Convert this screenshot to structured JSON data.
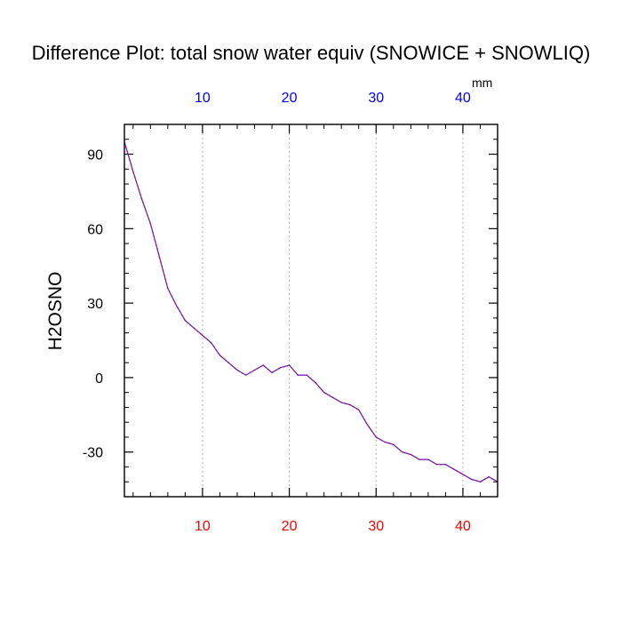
{
  "chart_data": {
    "type": "line",
    "title": "Difference Plot: total snow water equiv (SNOWICE + SNOWLIQ)",
    "ylabel": "H2OSNO",
    "units": "mm",
    "xlim": [
      1,
      44
    ],
    "ylim": [
      -48,
      102
    ],
    "x_ticks": [
      10,
      20,
      30,
      40
    ],
    "y_ticks": [
      -30,
      0,
      30,
      60,
      90
    ],
    "top_tick_color": "#0000ff",
    "bottom_tick_color": "#ff0000",
    "grid": "vertical dotted at major x ticks",
    "series": [
      {
        "color": "#7b00a0",
        "style": "dashed overlay",
        "x": [
          1,
          2,
          3,
          4,
          5,
          6,
          7,
          8,
          9,
          10,
          11,
          12,
          13,
          14,
          15,
          16,
          17,
          18,
          19,
          20,
          21,
          22,
          23,
          24,
          25,
          26,
          27,
          28,
          29,
          30,
          31,
          32,
          33,
          34,
          35,
          36,
          37,
          38,
          39,
          40,
          41,
          42,
          43,
          44
        ],
        "values": [
          95,
          83,
          72,
          62,
          49,
          36,
          29,
          23,
          20,
          17,
          14,
          9,
          6,
          3,
          1,
          3,
          5,
          2,
          4,
          5,
          1,
          1,
          -2,
          -6,
          -8,
          -10,
          -11,
          -13,
          -19,
          -24,
          -26,
          -27,
          -30,
          -31,
          -33,
          -33,
          -35,
          -35,
          -37,
          -39,
          -41,
          -42,
          -40,
          -42
        ]
      }
    ]
  }
}
